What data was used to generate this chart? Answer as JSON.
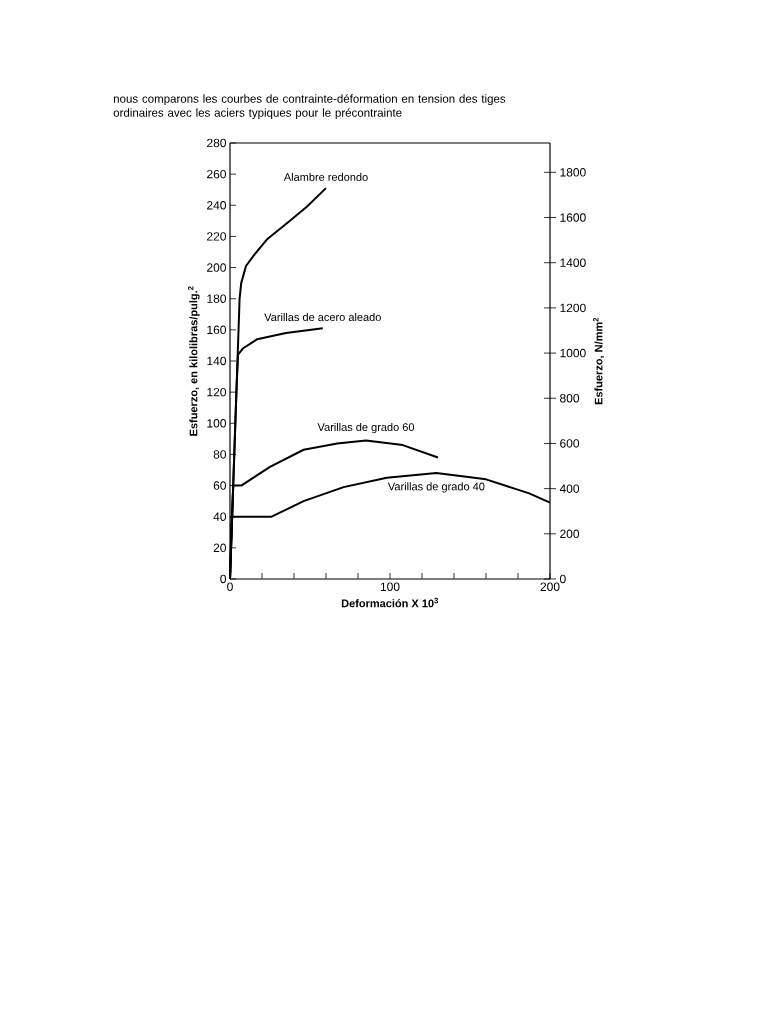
{
  "chart_data": {
    "type": "line",
    "title": "nous comparons les courbes de contrainte-déformation en tension des tiges ordinaires avec les aciers typiques pour le précontrainte",
    "xlabel": "Deformación X 10$^{3}$",
    "ylabel": "Esfuerzo, en kilolibras/pulg.$^{2}$",
    "y2label": "Esfuerzo, N/mm$^{2}$",
    "xlim": [
      0,
      200
    ],
    "xticks": [
      0,
      {
        "value": 20,
        "label": null
      },
      {
        "value": 40,
        "label": null
      },
      {
        "value": 60,
        "label": null
      },
      {
        "value": 80,
        "label": null
      },
      100,
      {
        "value": 120,
        "label": null
      },
      {
        "value": 140,
        "label": null
      },
      {
        "value": 160,
        "label": null
      },
      {
        "value": 180,
        "label": null
      },
      200
    ],
    "ylim": [
      0,
      280
    ],
    "yticks": [
      0,
      20,
      40,
      60,
      80,
      100,
      120,
      140,
      160,
      180,
      200,
      220,
      240,
      260,
      280
    ],
    "y2lim": [
      0,
      1930
    ],
    "y2ticks": [
      0,
      200,
      400,
      600,
      800,
      1000,
      1200,
      1400,
      1600,
      1800
    ],
    "grid": false,
    "marker": "none",
    "line_style": "solid",
    "series": [
      {
        "name": "Alambre redondo",
        "color": "#000000",
        "x": [
          0,
          6,
          7,
          10,
          15,
          23,
          35,
          48,
          60
        ],
        "values": [
          0,
          180,
          190,
          201,
          208,
          218,
          228,
          239,
          251
        ]
      },
      {
        "name": "Varillas de acero aleado",
        "color": "#000000",
        "x": [
          0,
          4,
          5,
          8,
          17,
          35,
          58
        ],
        "values": [
          0,
          120,
          144,
          148,
          154,
          158,
          161
        ]
      },
      {
        "name": "Varillas de grado 60",
        "color": "#000000",
        "x": [
          0,
          2,
          7,
          25,
          46,
          67,
          85,
          108,
          130
        ],
        "values": [
          0,
          60,
          60,
          72,
          83,
          87,
          89,
          86,
          78
        ]
      },
      {
        "name": "Varillas de grado 40",
        "color": "#000000",
        "x": [
          0,
          1,
          26,
          46,
          71,
          98,
          129,
          160,
          187,
          200
        ],
        "values": [
          0,
          40,
          40,
          50,
          59,
          65,
          68,
          64,
          55,
          49
        ]
      }
    ]
  }
}
